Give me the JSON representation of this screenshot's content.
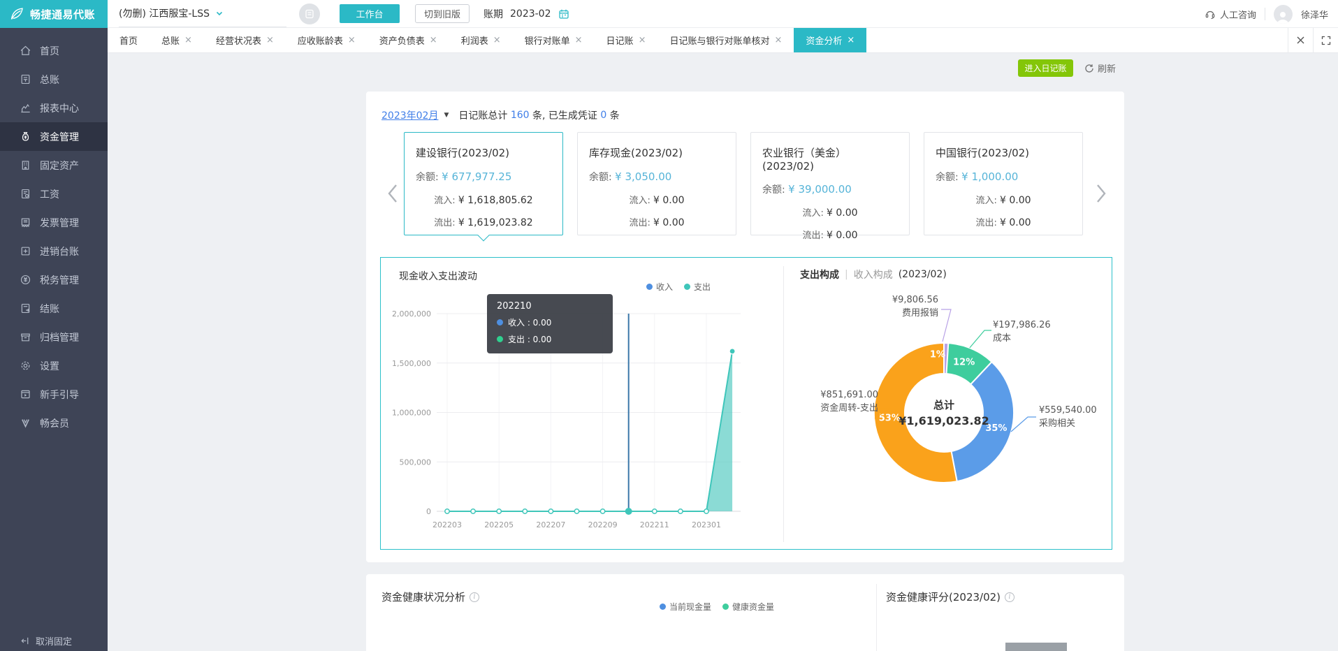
{
  "colors": {
    "accent": "#2bb9c6",
    "green_button": "#84c608",
    "link_blue": "#3f7ee8",
    "balance_blue": "#56b4d8",
    "income_blue": "#4e8fe0",
    "expense_teal": "#3fc6ba"
  },
  "sidebar": {
    "logo_text": "畅捷通易代账",
    "items": [
      {
        "key": "home",
        "label": "首页",
        "active": false
      },
      {
        "key": "general-ledger",
        "label": "总账",
        "active": false
      },
      {
        "key": "report-center",
        "label": "报表中心",
        "active": false
      },
      {
        "key": "funds",
        "label": "资金管理",
        "active": true
      },
      {
        "key": "fixed-assets",
        "label": "固定资产",
        "active": false
      },
      {
        "key": "salary",
        "label": "工资",
        "active": false
      },
      {
        "key": "invoice",
        "label": "发票管理",
        "active": false
      },
      {
        "key": "inventory-ledger",
        "label": "进销台账",
        "active": false
      },
      {
        "key": "tax",
        "label": "税务管理",
        "active": false
      },
      {
        "key": "closing",
        "label": "结账",
        "active": false
      },
      {
        "key": "archive",
        "label": "归档管理",
        "active": false
      },
      {
        "key": "settings",
        "label": "设置",
        "active": false
      },
      {
        "key": "guide",
        "label": "新手引导",
        "active": false
      },
      {
        "key": "member",
        "label": "畅会员",
        "active": false
      }
    ],
    "unpin_label": "取消固定"
  },
  "topbar": {
    "company": "(勿删) 江西服宝-LSS",
    "workbench_button": "工作台",
    "old_version_button": "切到旧版",
    "period_label": "账期",
    "period_value": "2023-02",
    "support_label": "人工咨询",
    "username": "徐泽华"
  },
  "tabs": [
    {
      "key": "home",
      "label": "首页",
      "closable": false,
      "active": false
    },
    {
      "key": "general-ledger",
      "label": "总账",
      "closable": true,
      "active": false
    },
    {
      "key": "business-status",
      "label": "经营状况表",
      "closable": true,
      "active": false
    },
    {
      "key": "receivable-aging",
      "label": "应收账龄表",
      "closable": true,
      "active": false
    },
    {
      "key": "balance-sheet",
      "label": "资产负债表",
      "closable": true,
      "active": false
    },
    {
      "key": "profit",
      "label": "利润表",
      "closable": true,
      "active": false
    },
    {
      "key": "bank-statement",
      "label": "银行对账单",
      "closable": true,
      "active": false
    },
    {
      "key": "journal",
      "label": "日记账",
      "closable": true,
      "active": false
    },
    {
      "key": "journal-bank-check",
      "label": "日记账与银行对账单核对",
      "closable": true,
      "active": false
    },
    {
      "key": "funds-analysis",
      "label": "资金分析",
      "closable": true,
      "active": true
    }
  ],
  "toolbar": {
    "enter_journal_button": "进入日记账",
    "refresh_label": "刷新"
  },
  "summary": {
    "period": "2023年02月",
    "total_label": "日记账总计",
    "total_count": "160",
    "total_unit": "条,",
    "voucher_label": "已生成凭证",
    "voucher_count": "0",
    "voucher_unit": "条"
  },
  "accounts": [
    {
      "title": "建设银行(2023/02)",
      "balance_label": "余额:",
      "balance": "¥ 677,977.25",
      "inflow_label": "流入:",
      "inflow": "¥ 1,618,805.62",
      "outflow_label": "流出:",
      "outflow": "¥ 1,619,023.82",
      "selected": true
    },
    {
      "title": "库存现金(2023/02)",
      "balance_label": "余额:",
      "balance": "¥ 3,050.00",
      "inflow_label": "流入:",
      "inflow": "¥ 0.00",
      "outflow_label": "流出:",
      "outflow": "¥ 0.00",
      "selected": false
    },
    {
      "title": "农业银行（美金）(2023/02)",
      "balance_label": "余额:",
      "balance": "¥ 39,000.00",
      "inflow_label": "流入:",
      "inflow": "¥ 0.00",
      "outflow_label": "流出:",
      "outflow": "¥ 0.00",
      "selected": false
    },
    {
      "title": "中国银行(2023/02)",
      "balance_label": "余额:",
      "balance": "¥ 1,000.00",
      "inflow_label": "流入:",
      "inflow": "¥ 0.00",
      "outflow_label": "流出:",
      "outflow": "¥ 0.00",
      "selected": false
    }
  ],
  "chart_data": [
    {
      "type": "area",
      "title": "现金收入支出波动",
      "x": [
        "202203",
        "202204",
        "202205",
        "202206",
        "202207",
        "202208",
        "202209",
        "202210",
        "202211",
        "202212",
        "202301",
        "202302"
      ],
      "x_tick_indices": [
        0,
        2,
        4,
        6,
        8,
        10
      ],
      "series": [
        {
          "name": "收入",
          "color": "#4e8fe0",
          "values": [
            0,
            0,
            0,
            0,
            0,
            0,
            0,
            0,
            0,
            0,
            0,
            1618805.62
          ]
        },
        {
          "name": "支出",
          "color": "#3fc6ba",
          "values": [
            0,
            0,
            0,
            0,
            0,
            0,
            0,
            0,
            0,
            0,
            0,
            1619023.82
          ]
        }
      ],
      "ylim": [
        0,
        2000000
      ],
      "y_ticks": [
        "0",
        "500,000",
        "1,000,000",
        "1,500,000",
        "2,000,000"
      ],
      "grid": true,
      "legend_position": "top-right",
      "tooltip": {
        "title": "202210",
        "x_index": 7,
        "rows": [
          {
            "name": "收入",
            "value": "0.00",
            "color": "#4e8fe0"
          },
          {
            "name": "支出",
            "value": "0.00",
            "color": "#2fd08f"
          }
        ]
      }
    },
    {
      "type": "pie",
      "title_active": "支出构成",
      "title_separator": "|",
      "title_inactive": "收入构成",
      "title_suffix": "(2023/02)",
      "center_label": "总计",
      "center_value": "¥1,619,023.82",
      "segments": [
        {
          "label": "成本",
          "value": "¥197,986.26",
          "pct": 12,
          "color": "#3ecd9d"
        },
        {
          "label": "采购相关",
          "value": "¥559,540.00",
          "pct": 35,
          "color": "#5b9ce8"
        },
        {
          "label": "资金周转-支出",
          "value": "¥851,691.00",
          "pct": 53,
          "color": "#faa21b"
        },
        {
          "label": "费用报销",
          "value": "¥9,806.56",
          "pct": 1,
          "color": "#b8a1e6"
        }
      ]
    }
  ],
  "bottom": {
    "health_title": "资金健康状况分析",
    "legend": [
      {
        "label": "当前现金量",
        "color": "#4e8fe0"
      },
      {
        "label": "健康资金量",
        "color": "#3ecd9d"
      }
    ],
    "score_title": "资金健康评分(2023/02)"
  }
}
